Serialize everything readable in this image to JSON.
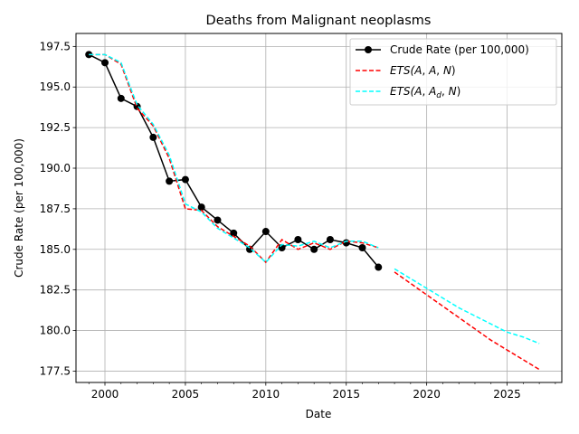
{
  "chart_data": {
    "type": "line",
    "title": "Deaths from Malignant neoplasms",
    "xlabel": "Date",
    "ylabel": "Crude Rate (per 100,000)",
    "xlim": [
      1998.2,
      2028.4
    ],
    "ylim": [
      176.8,
      198.3
    ],
    "xticks": [
      2000,
      2005,
      2010,
      2015,
      2020,
      2025
    ],
    "yticks": [
      177.5,
      180.0,
      182.5,
      185.0,
      187.5,
      190.0,
      192.5,
      195.0,
      197.5
    ],
    "grid": true,
    "legend_position": "top-right",
    "series": [
      {
        "name": "Crude Rate (per 100,000)",
        "color": "#000000",
        "style": "solid-marker",
        "x": [
          1999,
          2000,
          2001,
          2002,
          2003,
          2004,
          2005,
          2006,
          2007,
          2008,
          2009,
          2010,
          2011,
          2012,
          2013,
          2014,
          2015,
          2016,
          2017
        ],
        "y": [
          197.0,
          196.5,
          194.3,
          193.8,
          191.9,
          189.2,
          189.3,
          187.6,
          186.8,
          186.0,
          185.0,
          186.1,
          185.1,
          185.6,
          185.0,
          185.6,
          185.4,
          185.1,
          183.9
        ]
      },
      {
        "name": "ETS(A, A, N)",
        "name_parts": [
          "ETS(",
          "A",
          ", ",
          "A",
          ", ",
          "N",
          ")"
        ],
        "color": "#ff0000",
        "style": "dashed",
        "x": [
          1999,
          2000,
          2001,
          2002,
          2003,
          2004,
          2005,
          2006,
          2007,
          2008,
          2009,
          2010,
          2011,
          2012,
          2013,
          2014,
          2015,
          2016,
          2017
        ],
        "y": [
          197.0,
          197.0,
          196.4,
          193.7,
          192.6,
          190.6,
          187.5,
          187.4,
          186.4,
          185.8,
          185.2,
          184.2,
          185.6,
          185.0,
          185.4,
          185.0,
          185.5,
          185.4,
          185.1
        ],
        "forecast": {
          "x": [
            2018,
            2019,
            2020,
            2021,
            2022,
            2023,
            2024,
            2025,
            2026,
            2027
          ],
          "y": [
            183.6,
            182.9,
            182.2,
            181.5,
            180.8,
            180.1,
            179.4,
            178.8,
            178.2,
            177.6
          ]
        }
      },
      {
        "name": "ETS(A, Ad, N)",
        "name_parts": [
          "ETS(",
          "A",
          ", ",
          "A",
          "d",
          ", ",
          "N",
          ")"
        ],
        "color": "#00ffff",
        "style": "dashed",
        "x": [
          1999,
          2000,
          2001,
          2002,
          2003,
          2004,
          2005,
          2006,
          2007,
          2008,
          2009,
          2010,
          2011,
          2012,
          2013,
          2014,
          2015,
          2016,
          2017
        ],
        "y": [
          197.0,
          197.0,
          196.5,
          193.9,
          192.7,
          190.8,
          187.8,
          187.3,
          186.3,
          185.7,
          185.1,
          184.2,
          185.3,
          185.2,
          185.5,
          185.1,
          185.5,
          185.5,
          185.1
        ],
        "forecast": {
          "x": [
            2018,
            2019,
            2020,
            2021,
            2022,
            2023,
            2024,
            2025,
            2026,
            2027
          ],
          "y": [
            183.8,
            183.2,
            182.6,
            182.0,
            181.4,
            180.9,
            180.4,
            179.9,
            179.6,
            179.2
          ]
        }
      }
    ]
  }
}
